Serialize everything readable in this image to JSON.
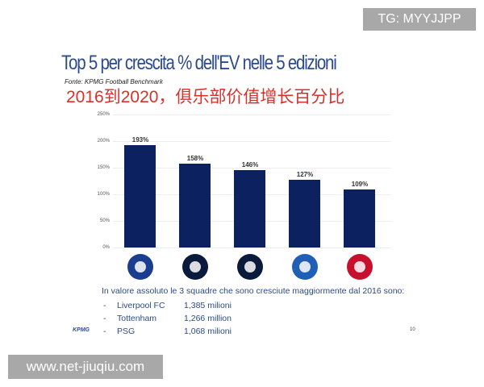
{
  "watermarks": {
    "top": "TG: MYYJJPP",
    "bottom": "www.net-jiuqiu.com"
  },
  "slide": {
    "title": "Top 5 per crescita % dell'EV nelle 5 edizioni",
    "source": "Fonte: KPMG Football Benchmark",
    "subtitle": "2016到2020，俱乐部价值增长百分比",
    "note": "In valore assoluto le 3 squadre che sono cresciute maggiormente dal 2016 sono:",
    "rows": [
      {
        "dash": "-",
        "club": "Liverpool FC",
        "value": "1,385 milioni"
      },
      {
        "dash": "-",
        "club": "Tottenham",
        "value": "1,266 million"
      },
      {
        "dash": "-",
        "club": "PSG",
        "value": "1,068 milioni"
      }
    ],
    "footer_logo": "KPMG",
    "page_number": "10"
  },
  "chart_data": {
    "type": "bar",
    "categories": [
      "Olympique Lyonnais",
      "Tottenham",
      "Inter",
      "PSG",
      "Liverpool"
    ],
    "values": [
      193,
      158,
      146,
      127,
      109
    ],
    "data_labels": [
      "193%",
      "158%",
      "146%",
      "127%",
      "109%"
    ],
    "yticks": [
      "0%",
      "50%",
      "100%",
      "150%",
      "200%",
      "250%"
    ],
    "ylim": [
      0,
      250
    ],
    "bar_color": "#0c2160",
    "grid": true,
    "logo_text": "OLYMPIQUE LYONNAIS"
  }
}
